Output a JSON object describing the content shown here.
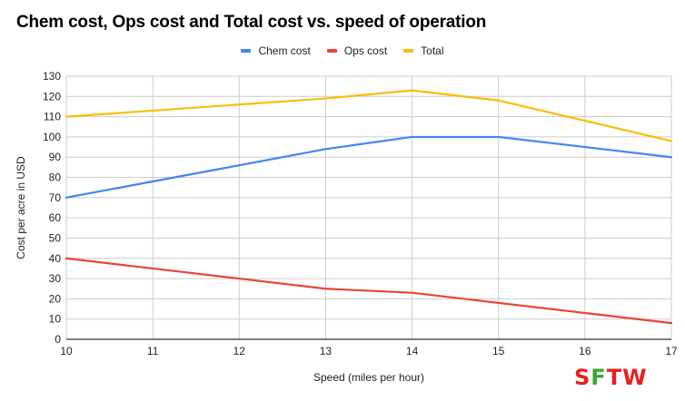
{
  "chart_data": {
    "type": "line",
    "title": "Chem cost, Ops cost and Total cost vs. speed of operation",
    "xlabel": "Speed (miles per hour)",
    "ylabel": "Cost per acre in USD",
    "x": [
      10,
      11,
      12,
      13,
      14,
      15,
      16,
      17
    ],
    "xlim": [
      10,
      17
    ],
    "ylim": [
      0,
      130
    ],
    "y_ticks": [
      0,
      10,
      20,
      30,
      40,
      50,
      60,
      70,
      80,
      90,
      100,
      110,
      120,
      130
    ],
    "x_ticks": [
      10,
      11,
      12,
      13,
      14,
      15,
      16,
      17
    ],
    "grid": true,
    "legend_position": "top-center",
    "series": [
      {
        "name": "Chem cost",
        "color": "#4285F4",
        "values": [
          70,
          78,
          86,
          94,
          100,
          100,
          95,
          90
        ]
      },
      {
        "name": "Ops cost",
        "color": "#EA4335",
        "values": [
          40,
          35,
          30,
          25,
          23,
          18,
          13,
          8
        ]
      },
      {
        "name": "Total",
        "color": "#FBBC04",
        "values": [
          110,
          113,
          116,
          119,
          123,
          118,
          108,
          98
        ]
      }
    ]
  },
  "logo": {
    "s": "S",
    "f": "F",
    "tw": "TW"
  }
}
